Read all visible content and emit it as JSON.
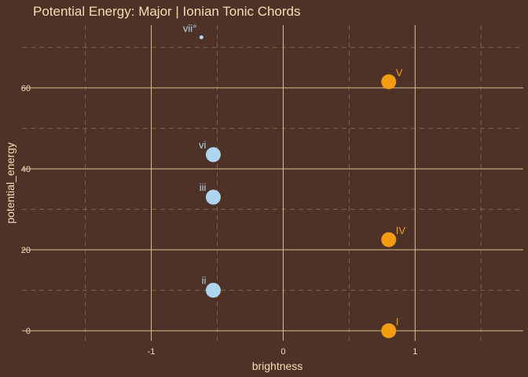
{
  "chart_data": {
    "type": "scatter",
    "title": "Potential Energy: Major | Ionian Tonic Chords",
    "xlabel": "brightness",
    "ylabel": "potential_energy",
    "xlim": [
      -1.98,
      1.82
    ],
    "ylim": [
      -2.5,
      75.5
    ],
    "x_ticks": [
      -1,
      0,
      1
    ],
    "x_tick_labels": [
      "-1",
      "0",
      "1"
    ],
    "y_ticks": [
      0,
      20,
      40,
      60
    ],
    "y_tick_labels": [
      "0",
      "20",
      "40",
      "60"
    ],
    "x_minor": [
      -1.5,
      -0.5,
      0.5,
      1.5
    ],
    "y_minor": [
      10,
      30,
      50,
      70
    ],
    "grid": true,
    "legend": "none",
    "colors": {
      "background": "#4e3228",
      "grid_major": "#d9c08f",
      "grid_minor": "#7c5f4c",
      "orange": "#f39c12",
      "blue": "#aed6f1"
    },
    "points": [
      {
        "label": "I",
        "x": 0.8,
        "y": 0,
        "color": "orange",
        "size": "large"
      },
      {
        "label": "IV",
        "x": 0.8,
        "y": 22.5,
        "color": "orange",
        "size": "large"
      },
      {
        "label": "V",
        "x": 0.8,
        "y": 61.5,
        "color": "orange",
        "size": "large"
      },
      {
        "label": "ii",
        "x": -0.53,
        "y": 10,
        "color": "blue",
        "size": "large"
      },
      {
        "label": "iii",
        "x": -0.53,
        "y": 33,
        "color": "blue",
        "size": "large"
      },
      {
        "label": "vi",
        "x": -0.53,
        "y": 43.5,
        "color": "blue",
        "size": "large"
      },
      {
        "label": "vii°",
        "x": -0.62,
        "y": 72.5,
        "color": "blue",
        "size": "small"
      }
    ]
  }
}
